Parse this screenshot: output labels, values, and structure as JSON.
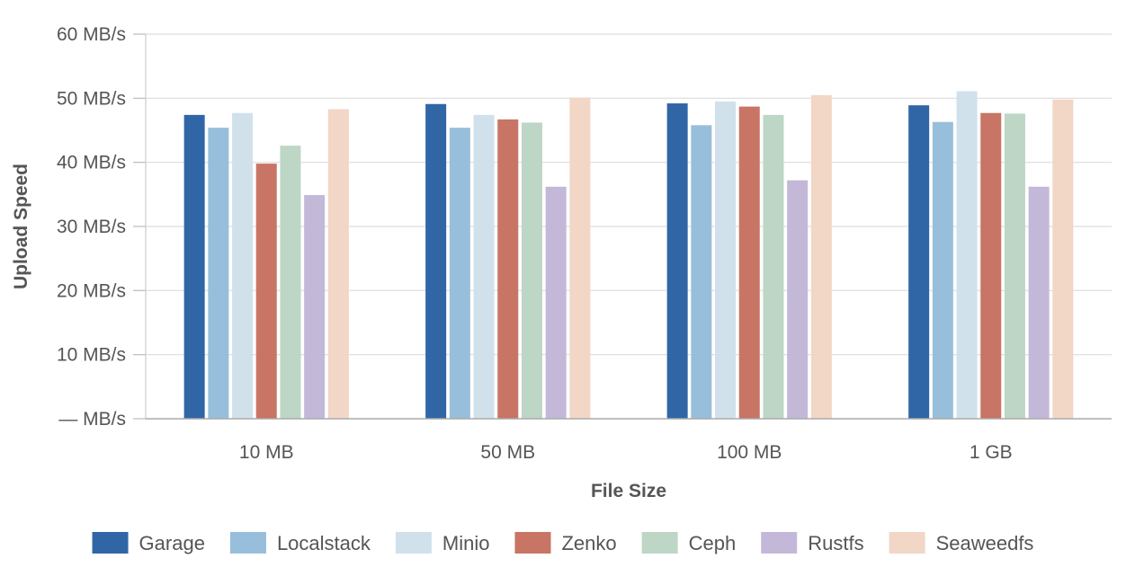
{
  "chart_data": {
    "type": "bar",
    "title": "",
    "xlabel": "File Size",
    "ylabel": "Upload Speed",
    "categories": [
      "10 MB",
      "50 MB",
      "100 MB",
      "1 GB"
    ],
    "y_ticks": [
      "— MB/s",
      "10 MB/s",
      "20 MB/s",
      "30 MB/s",
      "40 MB/s",
      "50 MB/s",
      "60 MB/s"
    ],
    "y_tick_values": [
      0,
      10,
      20,
      30,
      40,
      50,
      60
    ],
    "ylim": [
      0,
      60
    ],
    "grid": true,
    "legend_position": "bottom",
    "series": [
      {
        "name": "Garage",
        "color": "#3166a6",
        "values": [
          47.4,
          49.1,
          49.2,
          48.9
        ]
      },
      {
        "name": "Localstack",
        "color": "#97bfdb",
        "values": [
          45.4,
          45.4,
          45.8,
          46.3
        ]
      },
      {
        "name": "Minio",
        "color": "#d0e1ec",
        "values": [
          47.7,
          47.4,
          49.5,
          51.1
        ]
      },
      {
        "name": "Zenko",
        "color": "#c87565",
        "values": [
          39.8,
          46.7,
          48.7,
          47.7
        ]
      },
      {
        "name": "Ceph",
        "color": "#bdd6c6",
        "values": [
          42.6,
          46.2,
          47.4,
          47.6
        ]
      },
      {
        "name": "Rustfs",
        "color": "#c4b8d9",
        "values": [
          34.9,
          36.2,
          37.2,
          36.2
        ]
      },
      {
        "name": "Seaweedfs",
        "color": "#f2d6c6",
        "values": [
          48.3,
          50.1,
          50.5,
          49.8
        ]
      }
    ]
  }
}
